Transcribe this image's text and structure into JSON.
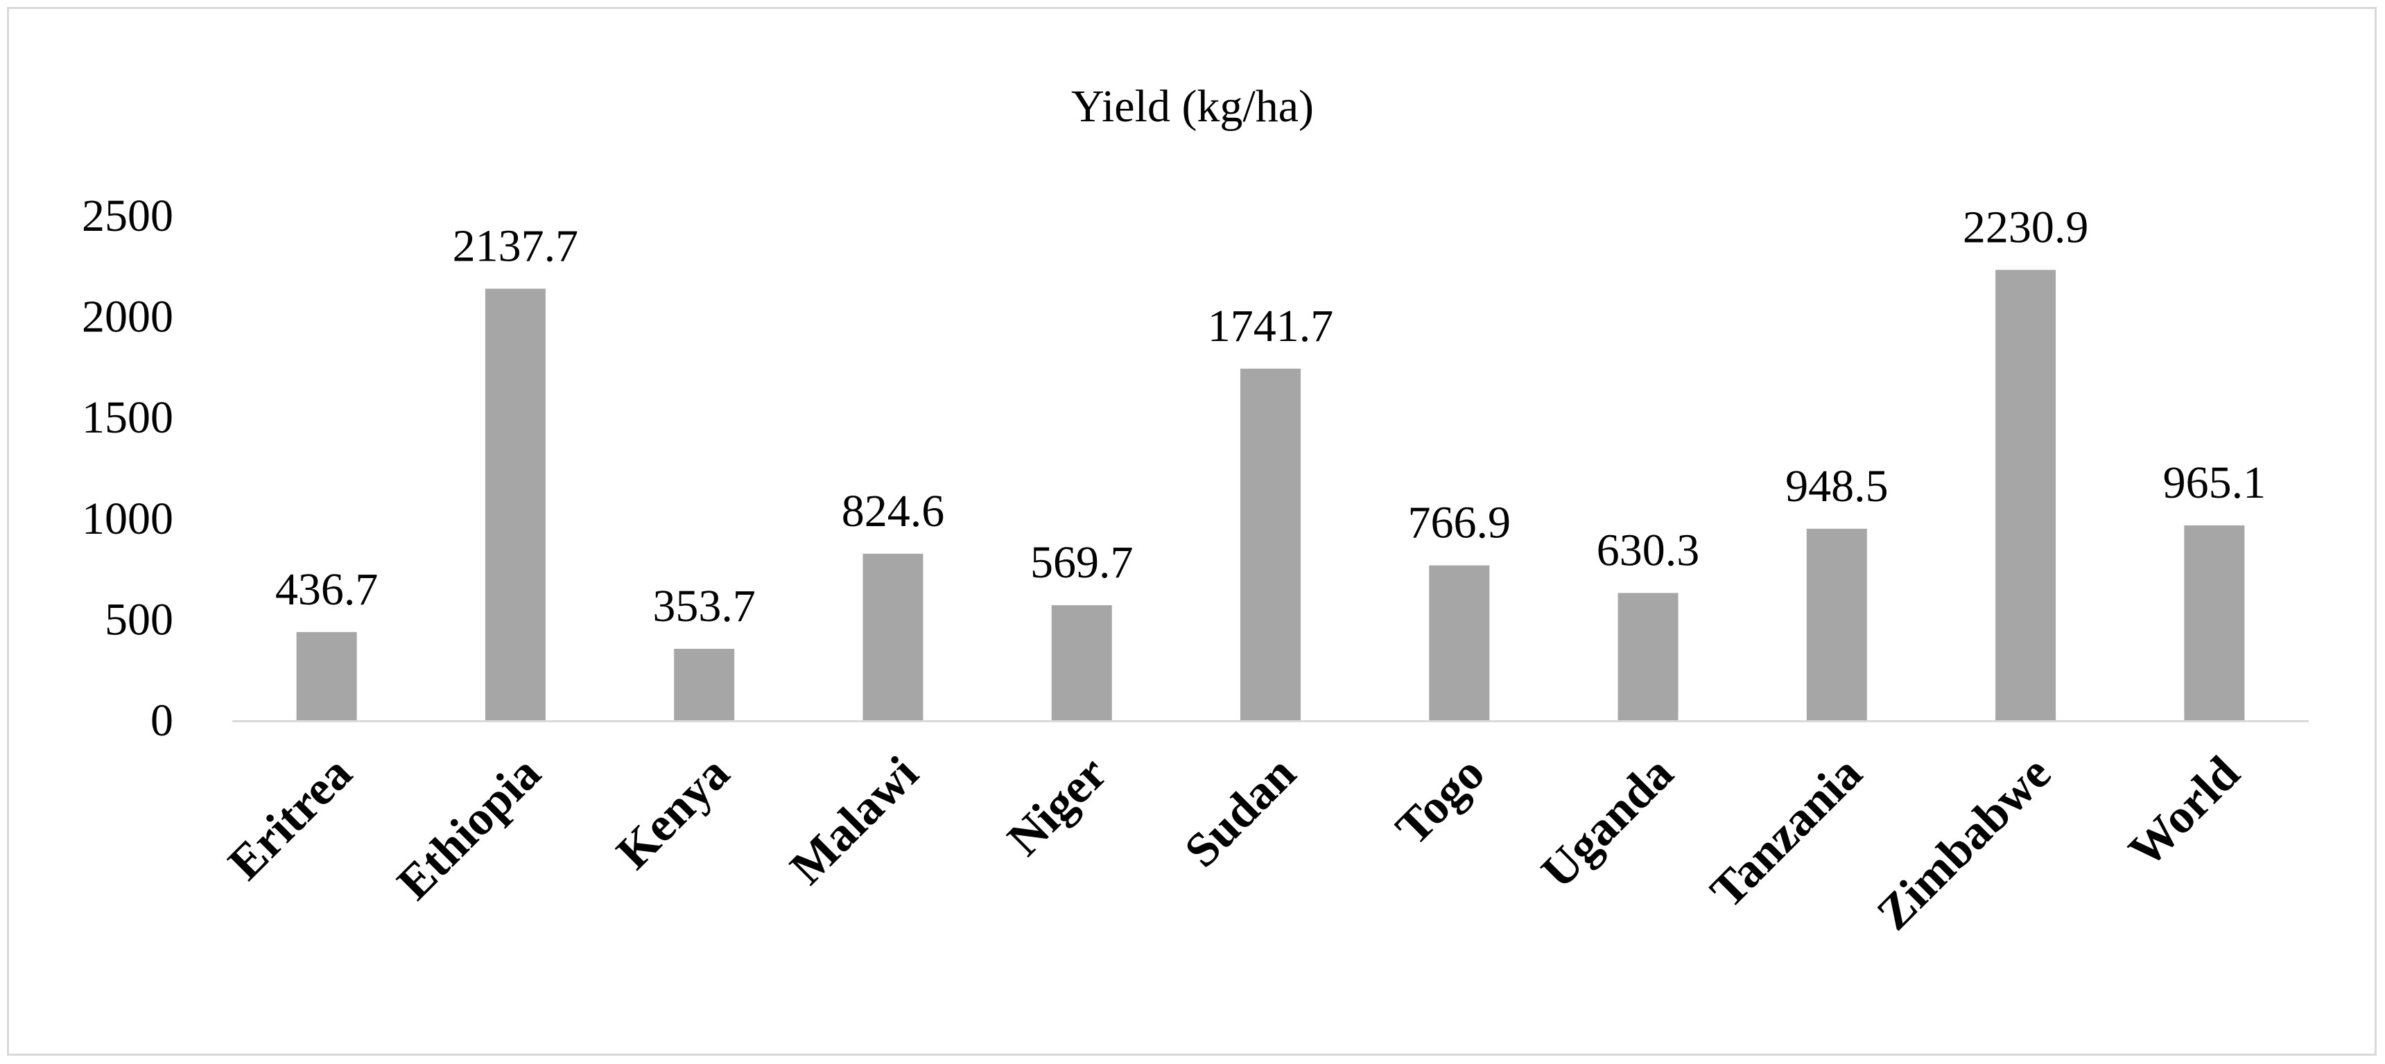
{
  "chart_data": {
    "type": "bar",
    "title": "Yield (kg/ha)",
    "xlabel": "",
    "ylabel": "",
    "categories": [
      "Eritrea",
      "Ethiopia",
      "Kenya",
      "Malawi",
      "Niger",
      "Sudan",
      "Togo",
      "Uganda",
      "Tanzania",
      "Zimbabwe",
      "World"
    ],
    "values": [
      436.7,
      2137.7,
      353.7,
      824.6,
      569.7,
      1741.7,
      766.9,
      630.3,
      948.5,
      2230.9,
      965.1
    ],
    "data_labels": [
      "436.7",
      "2137.7",
      "353.7",
      "824.6",
      "569.7",
      "1741.7",
      "766.9",
      "630.3",
      "948.5",
      "2230.9",
      "965.1"
    ],
    "yticks": [
      0,
      500,
      1000,
      1500,
      2000,
      2500
    ],
    "ylim": [
      0,
      2500
    ],
    "grid": false,
    "legend": "none",
    "bar_color": "#a6a6a6",
    "axis_color": "#d9d9d9"
  }
}
